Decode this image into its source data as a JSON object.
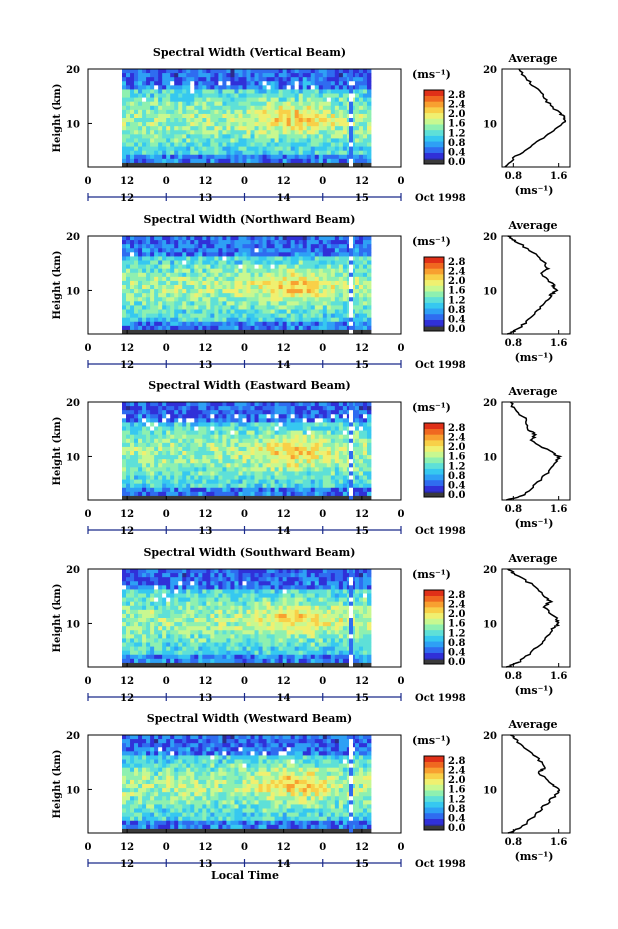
{
  "figure": {
    "date_label": "Oct 1998",
    "xlabel": "Local Time",
    "height_label": "Height (km)",
    "average_title": "Average",
    "unit_label": "(ms⁻¹)",
    "avg_unit_label": "(ms⁻¹)"
  },
  "chart_data": [
    {
      "type": "heatmap",
      "title": "Spectral Width (Vertical Beam)",
      "ylabel": "Height (km)",
      "xlim": [
        0,
        96
      ],
      "ylim": [
        2,
        20
      ],
      "hour_ticks": [
        "0",
        "12",
        "0",
        "12",
        "0",
        "12",
        "0",
        "12",
        "0"
      ],
      "day_ticks": [
        "12",
        "13",
        "14",
        "15"
      ],
      "y_ticks": [
        "20",
        "10"
      ],
      "colorbar": {
        "ticks": [
          "2.8",
          "2.4",
          "2.0",
          "1.6",
          "1.2",
          "0.8",
          "0.4",
          "0.0"
        ],
        "range": [
          0,
          3.0
        ]
      },
      "profile": {
        "xticks": [
          "0.8",
          "1.6"
        ],
        "xlim": [
          0.6,
          1.8
        ],
        "heights": [
          2,
          4,
          6,
          8,
          10,
          11,
          12,
          14,
          16,
          18,
          20
        ],
        "values": [
          0.65,
          0.85,
          1.15,
          1.4,
          1.68,
          1.72,
          1.6,
          1.4,
          1.25,
          1.05,
          0.9
        ]
      }
    },
    {
      "type": "heatmap",
      "title": "Spectral Width (Northward Beam)",
      "ylabel": "Height (km)",
      "xlim": [
        0,
        96
      ],
      "ylim": [
        2,
        20
      ],
      "hour_ticks": [
        "0",
        "12",
        "0",
        "12",
        "0",
        "12",
        "0",
        "12",
        "0"
      ],
      "day_ticks": [
        "12",
        "13",
        "14",
        "15"
      ],
      "y_ticks": [
        "20",
        "10"
      ],
      "colorbar": {
        "ticks": [
          "2.8",
          "2.4",
          "2.0",
          "1.6",
          "1.2",
          "0.8",
          "0.4",
          "0.0"
        ],
        "range": [
          0,
          3.0
        ]
      },
      "profile": {
        "xticks": [
          "0.8",
          "1.6"
        ],
        "xlim": [
          0.6,
          1.8
        ],
        "heights": [
          2,
          3,
          5,
          7,
          9,
          10,
          11,
          13,
          14,
          15,
          17,
          19,
          20
        ],
        "values": [
          0.7,
          0.9,
          1.1,
          1.3,
          1.45,
          1.55,
          1.5,
          1.3,
          1.4,
          1.35,
          1.15,
          0.85,
          0.7
        ]
      }
    },
    {
      "type": "heatmap",
      "title": "Spectral Width (Eastward Beam)",
      "ylabel": "Height (km)",
      "xlim": [
        0,
        96
      ],
      "ylim": [
        2,
        20
      ],
      "hour_ticks": [
        "0",
        "12",
        "0",
        "12",
        "0",
        "12",
        "0",
        "12",
        "0"
      ],
      "day_ticks": [
        "12",
        "13",
        "14",
        "15"
      ],
      "y_ticks": [
        "20",
        "10"
      ],
      "colorbar": {
        "ticks": [
          "2.8",
          "2.4",
          "2.0",
          "1.6",
          "1.2",
          "0.8",
          "0.4",
          "0.0"
        ],
        "range": [
          0,
          3.0
        ]
      },
      "profile": {
        "xticks": [
          "0.8",
          "1.6"
        ],
        "xlim": [
          0.6,
          1.8
        ],
        "heights": [
          2,
          3,
          5,
          7,
          9,
          10,
          11,
          13,
          14,
          15,
          17,
          19,
          20
        ],
        "values": [
          0.7,
          1.0,
          1.2,
          1.4,
          1.55,
          1.6,
          1.45,
          1.1,
          1.2,
          1.05,
          1.0,
          0.8,
          0.75
        ]
      }
    },
    {
      "type": "heatmap",
      "title": "Spectral Width (Southward Beam)",
      "ylabel": "Height (km)",
      "xlim": [
        0,
        96
      ],
      "ylim": [
        2,
        20
      ],
      "hour_ticks": [
        "0",
        "12",
        "0",
        "12",
        "0",
        "12",
        "0",
        "12",
        "0"
      ],
      "day_ticks": [
        "12",
        "13",
        "14",
        "15"
      ],
      "y_ticks": [
        "20",
        "10"
      ],
      "colorbar": {
        "ticks": [
          "2.8",
          "2.4",
          "2.0",
          "1.6",
          "1.2",
          "0.8",
          "0.4",
          "0.0"
        ],
        "range": [
          0,
          3.0
        ]
      },
      "profile": {
        "xticks": [
          "0.8",
          "1.6"
        ],
        "xlim": [
          0.6,
          1.8
        ],
        "heights": [
          2,
          3,
          5,
          7,
          9,
          10,
          11,
          13,
          14,
          15,
          17,
          19,
          20
        ],
        "values": [
          0.7,
          0.9,
          1.15,
          1.35,
          1.5,
          1.6,
          1.55,
          1.35,
          1.45,
          1.35,
          1.15,
          0.85,
          0.7
        ]
      }
    },
    {
      "type": "heatmap",
      "title": "Spectral Width (Westward Beam)",
      "ylabel": "Height (km)",
      "xlim": [
        0,
        96
      ],
      "ylim": [
        2,
        20
      ],
      "hour_ticks": [
        "0",
        "12",
        "0",
        "12",
        "0",
        "12",
        "0",
        "12",
        "0"
      ],
      "day_ticks": [
        "12",
        "13",
        "14",
        "15"
      ],
      "y_ticks": [
        "20",
        "10"
      ],
      "colorbar": {
        "ticks": [
          "2.8",
          "2.4",
          "2.0",
          "1.6",
          "1.2",
          "0.8",
          "0.4",
          "0.0"
        ],
        "range": [
          0,
          3.0
        ]
      },
      "profile": {
        "xticks": [
          "0.8",
          "1.6"
        ],
        "xlim": [
          0.6,
          1.8
        ],
        "heights": [
          2,
          3,
          5,
          7,
          9,
          10,
          11,
          13,
          14,
          15,
          17,
          19,
          20
        ],
        "values": [
          0.7,
          0.95,
          1.15,
          1.35,
          1.55,
          1.6,
          1.5,
          1.25,
          1.35,
          1.3,
          1.1,
          0.85,
          0.75
        ]
      }
    }
  ],
  "colors": {
    "scale": [
      "#2b2b8a",
      "#3030d8",
      "#2f6cf0",
      "#2ea0f5",
      "#36c8f0",
      "#5ee0d8",
      "#8ef0b0",
      "#c8f890",
      "#f0f070",
      "#f8d048",
      "#f8a030",
      "#f06820",
      "#e03018"
    ],
    "low": "#3a3a3a"
  }
}
